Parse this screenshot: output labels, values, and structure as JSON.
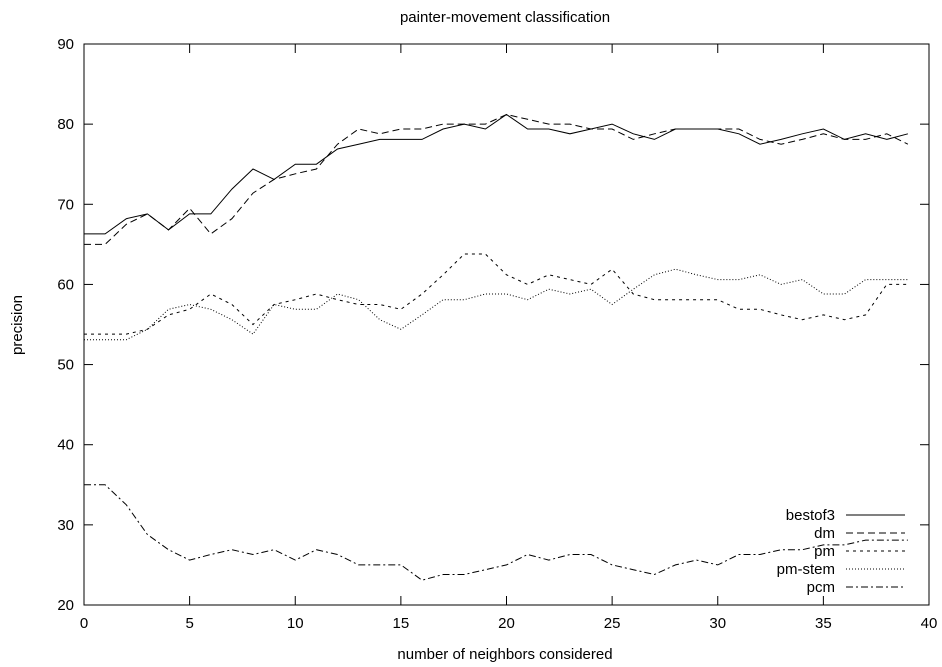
{
  "chart_data": {
    "type": "line",
    "title": "painter-movement classification",
    "xlabel": "number of neighbors considered",
    "ylabel": "precision",
    "xlim": [
      0,
      40
    ],
    "ylim": [
      20,
      90
    ],
    "xticks": [
      0,
      5,
      10,
      15,
      20,
      25,
      30,
      35,
      40
    ],
    "yticks": [
      20,
      30,
      40,
      50,
      60,
      70,
      80,
      90
    ],
    "grid": false,
    "legend_position": "bottom-right",
    "series": [
      {
        "name": "bestof3",
        "dash": "",
        "x": [
          0,
          1,
          2,
          3,
          4,
          5,
          6,
          7,
          8,
          9,
          10,
          11,
          12,
          13,
          14,
          15,
          16,
          17,
          18,
          19,
          20,
          21,
          22,
          23,
          24,
          25,
          26,
          27,
          28,
          29,
          30,
          31,
          32,
          33,
          34,
          35,
          36,
          37,
          38,
          39
        ],
        "values": [
          66.3,
          66.3,
          68.2,
          68.8,
          66.8,
          68.8,
          68.8,
          71.9,
          74.4,
          73.1,
          75.0,
          75.0,
          76.9,
          77.5,
          78.1,
          78.1,
          78.1,
          79.4,
          80.0,
          79.4,
          81.2,
          79.4,
          79.4,
          78.8,
          79.4,
          80.0,
          78.8,
          78.1,
          79.4,
          79.4,
          79.4,
          78.8,
          77.5,
          78.1,
          78.8,
          79.4,
          78.1,
          78.8,
          78.1,
          78.8
        ]
      },
      {
        "name": "dm",
        "dash": "7,4",
        "x": [
          0,
          1,
          2,
          3,
          4,
          5,
          6,
          7,
          8,
          9,
          10,
          11,
          12,
          13,
          14,
          15,
          16,
          17,
          18,
          19,
          20,
          21,
          22,
          23,
          24,
          25,
          26,
          27,
          28,
          29,
          30,
          31,
          32,
          33,
          34,
          35,
          36,
          37,
          38,
          39
        ],
        "values": [
          65.0,
          65.0,
          67.5,
          68.8,
          66.8,
          69.5,
          66.3,
          68.2,
          71.4,
          73.1,
          73.8,
          74.4,
          77.5,
          79.4,
          78.8,
          79.4,
          79.4,
          80.0,
          80.0,
          80.0,
          81.2,
          80.6,
          80.0,
          80.0,
          79.4,
          79.4,
          78.1,
          78.8,
          79.4,
          79.4,
          79.4,
          79.4,
          78.1,
          77.5,
          78.1,
          78.8,
          78.1,
          78.1,
          78.8,
          77.5
        ]
      },
      {
        "name": "pm",
        "dash": "3,4",
        "x": [
          0,
          1,
          2,
          3,
          4,
          5,
          6,
          7,
          8,
          9,
          10,
          11,
          12,
          13,
          14,
          15,
          16,
          17,
          18,
          19,
          20,
          21,
          22,
          23,
          24,
          25,
          26,
          27,
          28,
          29,
          30,
          31,
          32,
          33,
          34,
          35,
          36,
          37,
          38,
          39
        ],
        "values": [
          53.8,
          53.8,
          53.8,
          54.4,
          56.2,
          56.9,
          58.8,
          57.5,
          55.0,
          57.5,
          58.1,
          58.8,
          58.1,
          57.5,
          57.5,
          56.9,
          58.8,
          61.2,
          63.8,
          63.8,
          61.2,
          60.0,
          61.2,
          60.6,
          60.0,
          61.9,
          58.8,
          58.1,
          58.1,
          58.1,
          58.1,
          56.9,
          56.9,
          56.2,
          55.6,
          56.2,
          55.6,
          56.2,
          60.0,
          60.0
        ]
      },
      {
        "name": "pm-stem",
        "dash": "1,2",
        "x": [
          0,
          1,
          2,
          3,
          4,
          5,
          6,
          7,
          8,
          9,
          10,
          11,
          12,
          13,
          14,
          15,
          16,
          17,
          18,
          19,
          20,
          21,
          22,
          23,
          24,
          25,
          26,
          27,
          28,
          29,
          30,
          31,
          32,
          33,
          34,
          35,
          36,
          37,
          38,
          39
        ],
        "values": [
          53.1,
          53.1,
          53.1,
          54.4,
          56.9,
          57.5,
          56.9,
          55.6,
          53.8,
          57.5,
          56.9,
          56.9,
          58.8,
          58.1,
          55.6,
          54.4,
          56.2,
          58.1,
          58.1,
          58.8,
          58.8,
          58.1,
          59.4,
          58.8,
          59.4,
          57.5,
          59.4,
          61.2,
          61.9,
          61.2,
          60.6,
          60.6,
          61.2,
          60.0,
          60.6,
          58.8,
          58.8,
          60.6,
          60.6,
          60.6
        ]
      },
      {
        "name": "pcm",
        "dash": "7,3,2,3",
        "x": [
          0,
          1,
          2,
          3,
          4,
          5,
          6,
          7,
          8,
          9,
          10,
          11,
          12,
          13,
          14,
          15,
          16,
          17,
          18,
          19,
          20,
          21,
          22,
          23,
          24,
          25,
          26,
          27,
          28,
          29,
          30,
          31,
          32,
          33,
          34,
          35,
          36,
          37,
          38,
          39
        ],
        "values": [
          35.0,
          35.0,
          32.5,
          28.8,
          26.9,
          25.6,
          26.3,
          26.9,
          26.3,
          26.9,
          25.6,
          26.9,
          26.3,
          25.0,
          25.0,
          25.0,
          23.1,
          23.8,
          23.8,
          24.4,
          25.0,
          26.3,
          25.6,
          26.3,
          26.3,
          25.0,
          24.4,
          23.8,
          25.0,
          25.6,
          25.0,
          26.3,
          26.3,
          26.9,
          26.9,
          27.5,
          27.5,
          28.1,
          28.1,
          28.1
        ]
      }
    ]
  }
}
